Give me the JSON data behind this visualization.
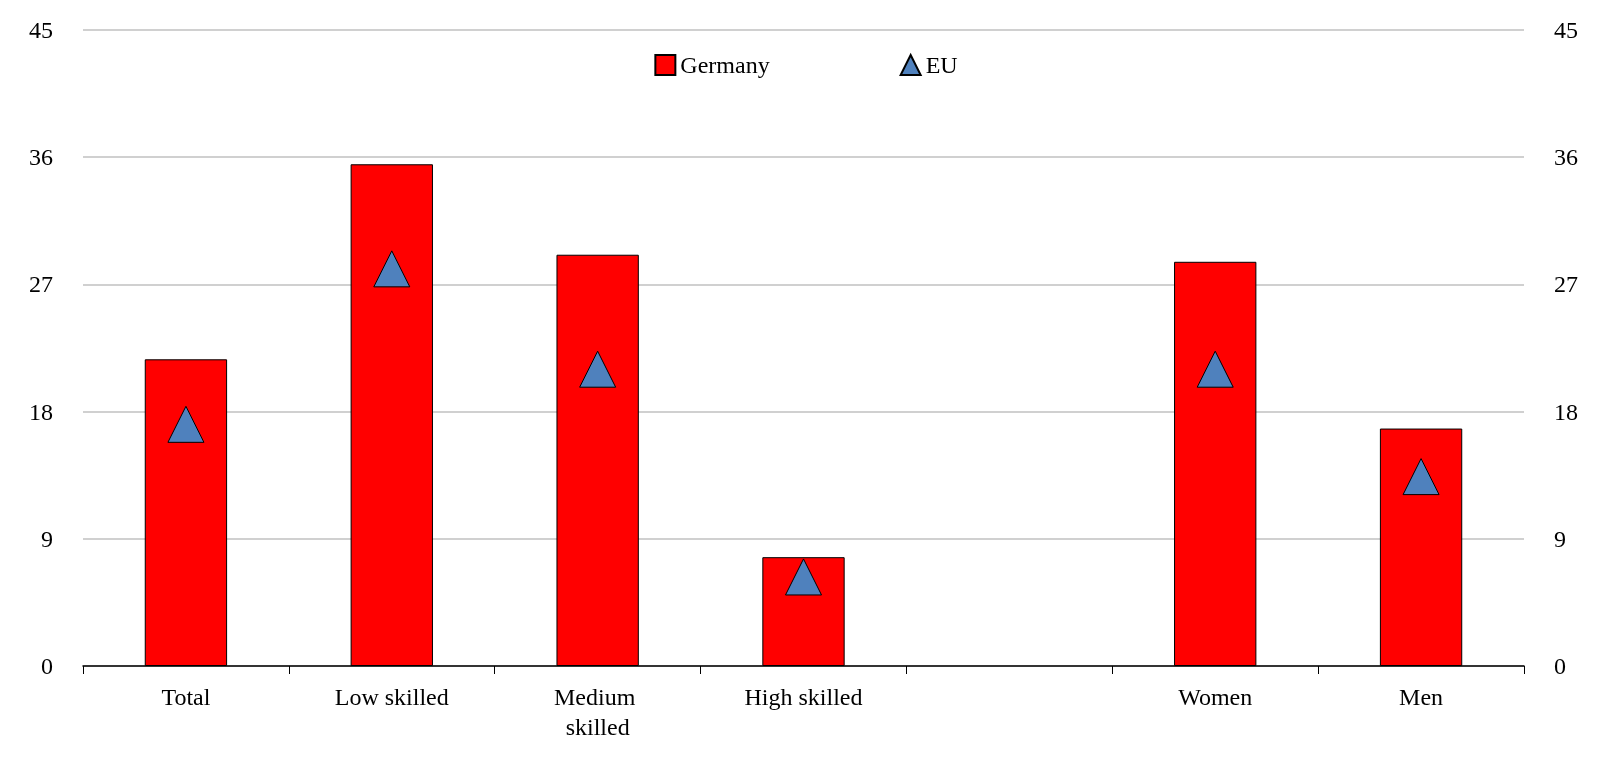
{
  "chart_data": {
    "type": "bar",
    "categories": [
      "Total",
      "Low skilled",
      "Medium skilled",
      "High skilled",
      null,
      "Women",
      "Men"
    ],
    "series": [
      {
        "name": "Germany",
        "color": "#ff0000",
        "values": [
          21.7,
          35.5,
          29.1,
          7.7,
          null,
          28.6,
          16.8
        ]
      },
      {
        "name": "EU",
        "type": "scatter",
        "color": "#4f81bd",
        "values": [
          17.1,
          28.1,
          21.0,
          6.3,
          null,
          21.0,
          13.4
        ]
      }
    ],
    "marker": "triangle",
    "ylim": [
      0,
      45
    ],
    "yticks": [
      0,
      9,
      18,
      27,
      36,
      45
    ],
    "y2lim": [
      0,
      45
    ],
    "y2ticks": [
      0,
      9,
      18,
      27,
      36,
      45
    ],
    "grid": "y",
    "legend": "top"
  }
}
